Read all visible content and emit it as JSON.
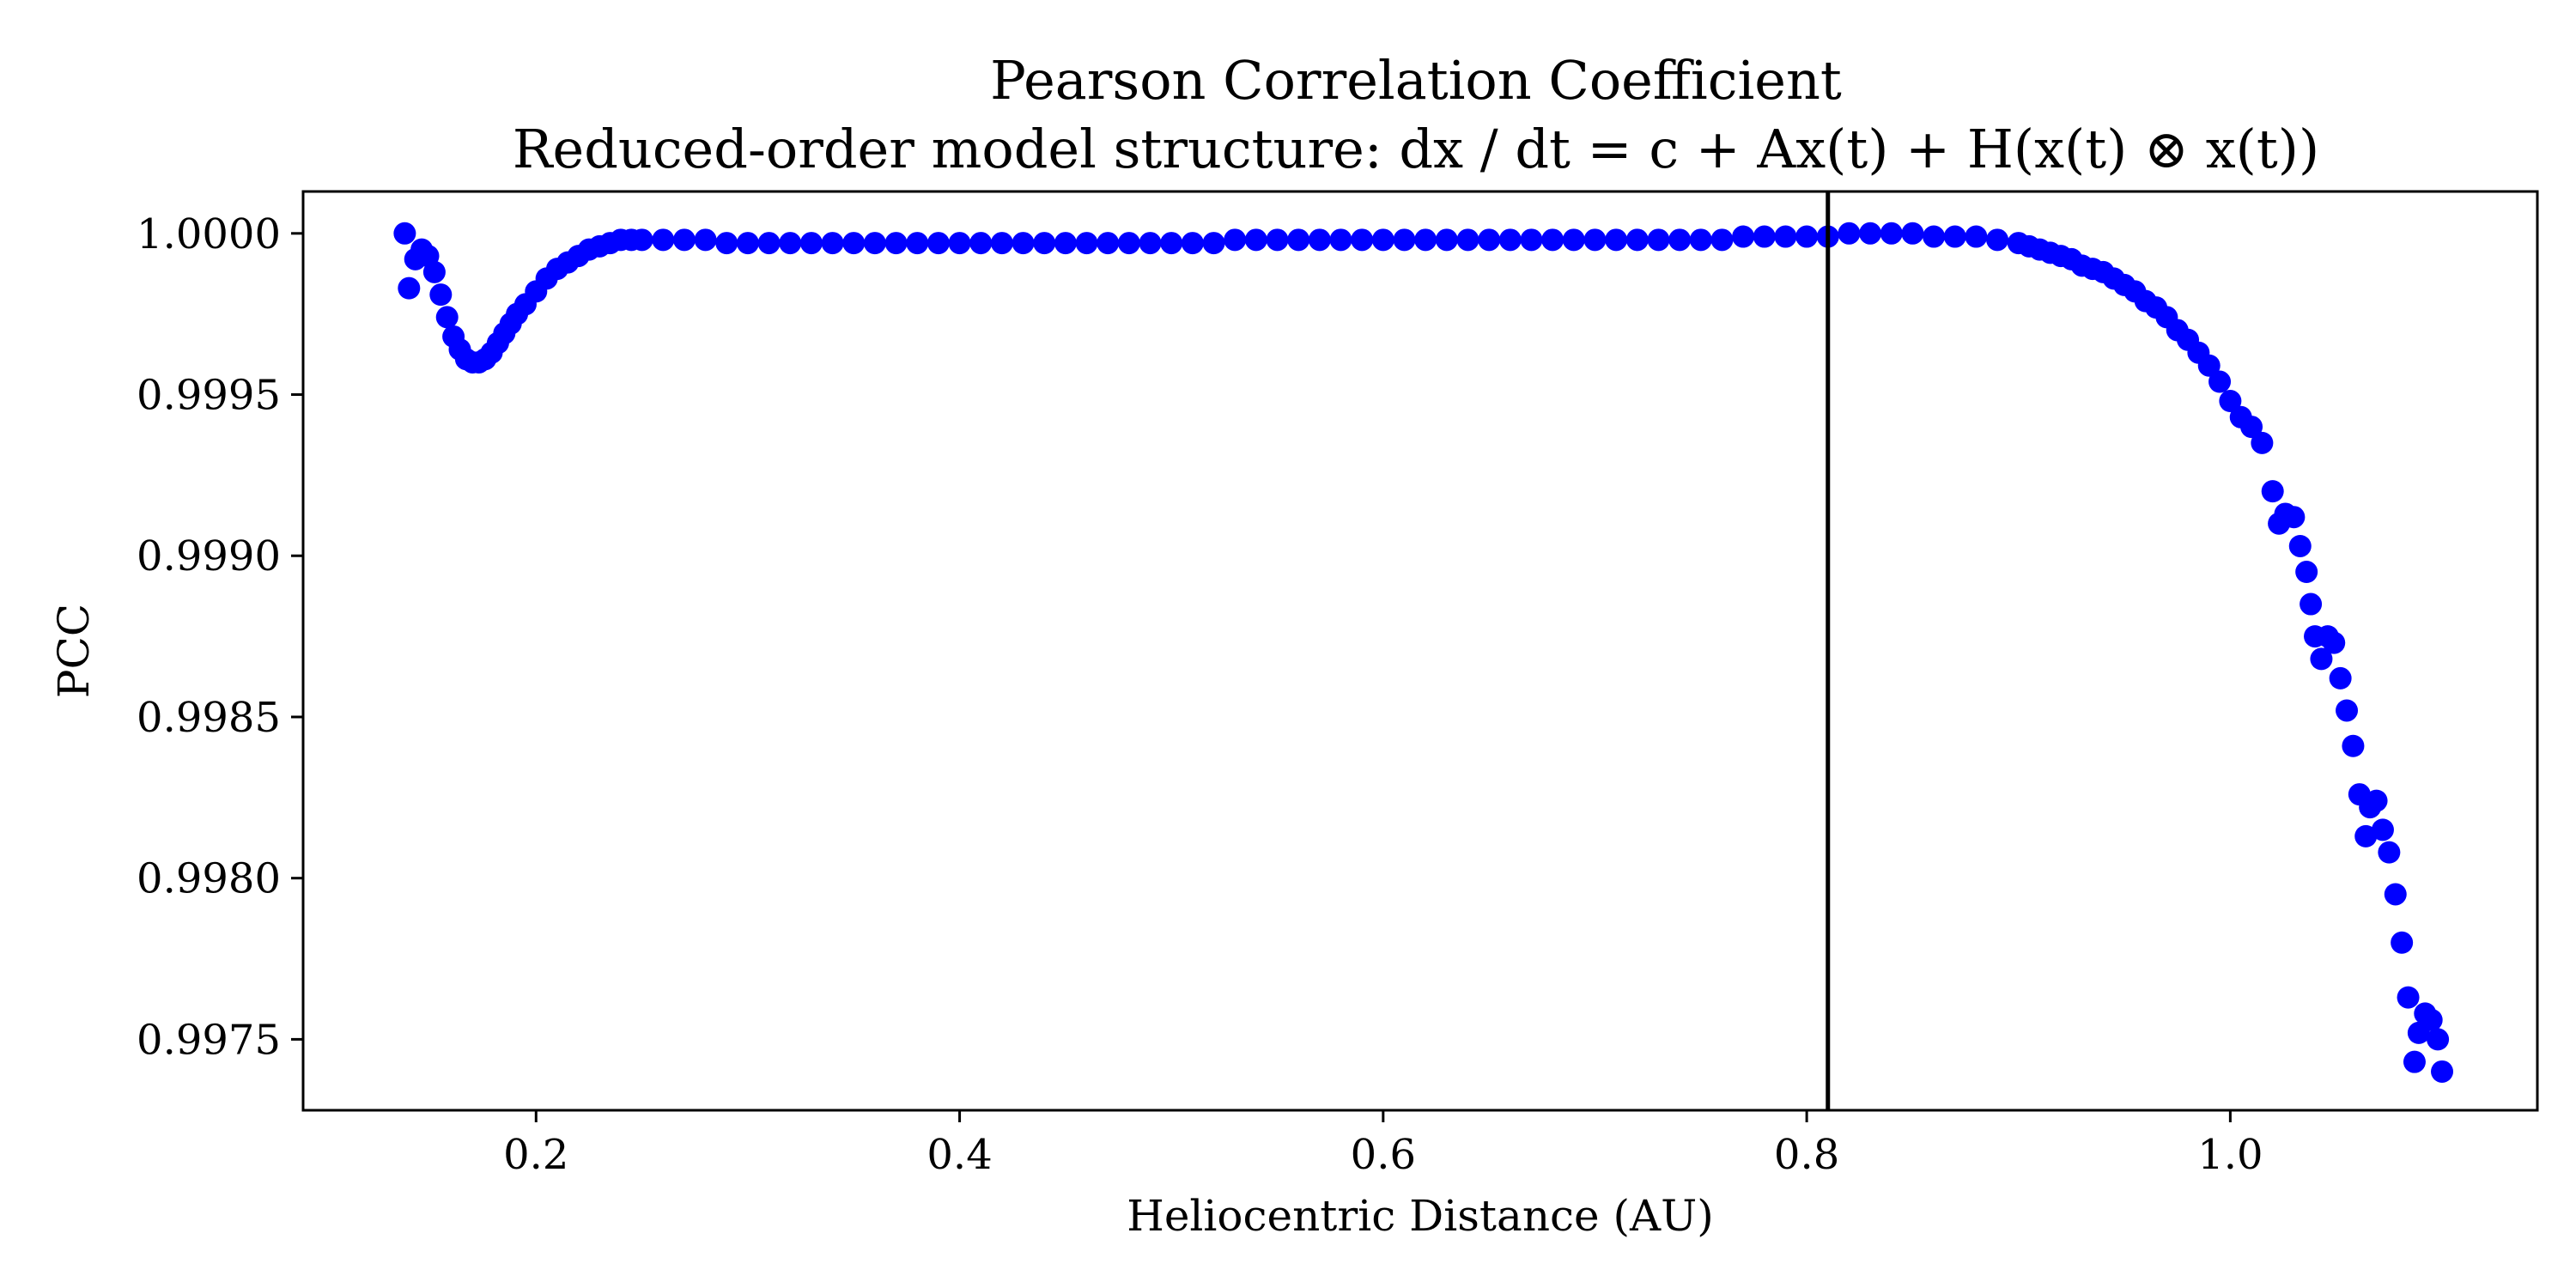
{
  "chart_data": {
    "type": "scatter",
    "title": "Pearson Correlation Coefficient",
    "subtitle": "Reduced-order model structure: dx / dt = c + Ax(t) + H(x(t) ⊗ x(t))",
    "xlabel": "Heliocentric Distance (AU)",
    "ylabel": "PCC",
    "xlim": [
      0.09,
      1.145
    ],
    "ylim": [
      0.99728,
      1.00013
    ],
    "x_ticks": [
      0.2,
      0.4,
      0.6,
      0.8,
      1.0
    ],
    "x_tick_labels": [
      "0.2",
      "0.4",
      "0.6",
      "0.8",
      "1.0"
    ],
    "y_ticks": [
      0.9975,
      0.998,
      0.9985,
      0.999,
      0.9995,
      1.0
    ],
    "y_tick_labels": [
      "0.9975",
      "0.9980",
      "0.9985",
      "0.9990",
      "0.9995",
      "1.0000"
    ],
    "vertical_line_x": 0.81,
    "grid": false,
    "marker_color": "#0000ff",
    "line_color": "#000000",
    "series": [
      {
        "x": [
          0.138,
          0.14,
          0.143,
          0.146,
          0.149,
          0.152,
          0.155,
          0.158,
          0.161,
          0.164,
          0.167,
          0.17,
          0.173,
          0.176,
          0.179,
          0.182,
          0.185,
          0.188,
          0.191,
          0.195,
          0.2,
          0.205,
          0.21,
          0.215,
          0.22,
          0.225,
          0.23,
          0.235,
          0.24,
          0.245,
          0.25,
          0.26,
          0.27,
          0.28,
          0.29,
          0.3,
          0.31,
          0.32,
          0.33,
          0.34,
          0.35,
          0.36,
          0.37,
          0.38,
          0.39,
          0.4,
          0.41,
          0.42,
          0.43,
          0.44,
          0.45,
          0.46,
          0.47,
          0.48,
          0.49,
          0.5,
          0.51,
          0.52,
          0.53,
          0.54,
          0.55,
          0.56,
          0.57,
          0.58,
          0.59,
          0.6,
          0.61,
          0.62,
          0.63,
          0.64,
          0.65,
          0.66,
          0.67,
          0.68,
          0.69,
          0.7,
          0.71,
          0.72,
          0.73,
          0.74,
          0.75,
          0.76,
          0.77,
          0.78,
          0.79,
          0.8,
          0.81,
          0.82,
          0.83,
          0.84,
          0.85,
          0.86,
          0.87,
          0.88,
          0.89,
          0.9,
          0.905,
          0.91,
          0.915,
          0.92,
          0.925,
          0.93,
          0.935,
          0.94,
          0.945,
          0.95,
          0.955,
          0.96,
          0.965,
          0.97,
          0.975,
          0.98,
          0.985,
          0.99,
          0.995,
          1.0,
          1.005,
          1.01,
          1.015,
          1.02,
          1.023,
          1.026,
          1.03,
          1.033,
          1.036,
          1.038,
          1.04,
          1.043,
          1.046,
          1.049,
          1.052,
          1.055,
          1.058,
          1.061,
          1.064,
          1.066,
          1.069,
          1.072,
          1.075,
          1.078,
          1.081,
          1.084,
          1.087,
          1.089,
          1.092,
          1.095,
          1.098,
          1.1
        ],
        "y": [
          1.0,
          0.99983,
          0.99992,
          0.99995,
          0.99993,
          0.99988,
          0.99981,
          0.99974,
          0.99968,
          0.99964,
          0.99961,
          0.9996,
          0.9996,
          0.99961,
          0.99963,
          0.99966,
          0.99969,
          0.99972,
          0.99975,
          0.99978,
          0.99982,
          0.99986,
          0.99989,
          0.99991,
          0.99993,
          0.99995,
          0.99996,
          0.99997,
          0.99998,
          0.99998,
          0.99998,
          0.99998,
          0.99998,
          0.99998,
          0.99997,
          0.99997,
          0.99997,
          0.99997,
          0.99997,
          0.99997,
          0.99997,
          0.99997,
          0.99997,
          0.99997,
          0.99997,
          0.99997,
          0.99997,
          0.99997,
          0.99997,
          0.99997,
          0.99997,
          0.99997,
          0.99997,
          0.99997,
          0.99997,
          0.99997,
          0.99997,
          0.99997,
          0.99998,
          0.99998,
          0.99998,
          0.99998,
          0.99998,
          0.99998,
          0.99998,
          0.99998,
          0.99998,
          0.99998,
          0.99998,
          0.99998,
          0.99998,
          0.99998,
          0.99998,
          0.99998,
          0.99998,
          0.99998,
          0.99998,
          0.99998,
          0.99998,
          0.99998,
          0.99998,
          0.99998,
          0.99999,
          0.99999,
          0.99999,
          0.99999,
          0.99999,
          1.0,
          1.0,
          1.0,
          1.0,
          0.99999,
          0.99999,
          0.99999,
          0.99998,
          0.99997,
          0.99996,
          0.99995,
          0.99994,
          0.99993,
          0.99992,
          0.9999,
          0.99989,
          0.99988,
          0.99986,
          0.99984,
          0.99982,
          0.99979,
          0.99977,
          0.99974,
          0.9997,
          0.99967,
          0.99963,
          0.99959,
          0.99954,
          0.99948,
          0.99943,
          0.9994,
          0.99935,
          0.9992,
          0.9991,
          0.99913,
          0.99912,
          0.99903,
          0.99895,
          0.99885,
          0.99875,
          0.99868,
          0.99875,
          0.99873,
          0.99862,
          0.99852,
          0.99841,
          0.99826,
          0.99813,
          0.99822,
          0.99824,
          0.99815,
          0.99808,
          0.99795,
          0.9978,
          0.99763,
          0.99743,
          0.99752,
          0.99758,
          0.99756,
          0.9975,
          0.9974
        ]
      }
    ]
  }
}
